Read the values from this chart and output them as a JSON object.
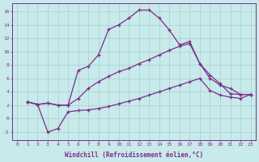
{
  "title": "",
  "xlabel": "Windchill (Refroidissement éolien,°C)",
  "ylabel": "",
  "bg_color": "#c8eaea",
  "line_color": "#7b2d8b",
  "xlim": [
    -0.5,
    23.5
  ],
  "ylim": [
    -3.2,
    17.2
  ],
  "yticks": [
    -2,
    0,
    2,
    4,
    6,
    8,
    10,
    12,
    14,
    16
  ],
  "xticks": [
    0,
    1,
    2,
    3,
    4,
    5,
    6,
    7,
    8,
    9,
    10,
    11,
    12,
    13,
    14,
    15,
    16,
    17,
    18,
    19,
    20,
    21,
    22,
    23
  ],
  "line1_x": [
    1,
    2,
    3,
    4,
    5,
    6,
    7,
    8,
    9,
    10,
    11,
    12,
    13,
    14,
    15,
    16,
    17,
    18,
    19,
    20,
    21,
    22,
    23
  ],
  "line1_y": [
    2.5,
    2.1,
    2.3,
    2.0,
    2.0,
    7.2,
    7.8,
    9.5,
    13.3,
    14.0,
    15.0,
    16.2,
    16.2,
    15.0,
    13.2,
    11.0,
    11.5,
    8.2,
    6.5,
    5.2,
    3.7,
    3.6,
    3.6
  ],
  "line2_x": [
    1,
    2,
    3,
    4,
    5,
    6,
    7,
    8,
    9,
    10,
    11,
    12,
    13,
    14,
    15,
    16,
    17,
    18,
    19,
    20,
    21,
    22,
    23
  ],
  "line2_y": [
    2.5,
    2.1,
    2.3,
    2.0,
    2.0,
    3.0,
    4.5,
    5.5,
    6.3,
    7.0,
    7.5,
    8.2,
    8.8,
    9.5,
    10.2,
    10.8,
    11.2,
    8.2,
    6.0,
    5.0,
    4.5,
    3.6,
    3.6
  ],
  "line3_x": [
    1,
    2,
    3,
    4,
    5,
    6,
    7,
    8,
    9,
    10,
    11,
    12,
    13,
    14,
    15,
    16,
    17,
    18,
    19,
    20,
    21,
    22,
    23
  ],
  "line3_y": [
    2.5,
    2.1,
    -2.0,
    -1.5,
    1.0,
    1.2,
    1.3,
    1.5,
    1.8,
    2.2,
    2.6,
    3.0,
    3.5,
    4.0,
    4.5,
    5.0,
    5.5,
    6.0,
    4.2,
    3.5,
    3.2,
    3.0,
    3.6
  ]
}
